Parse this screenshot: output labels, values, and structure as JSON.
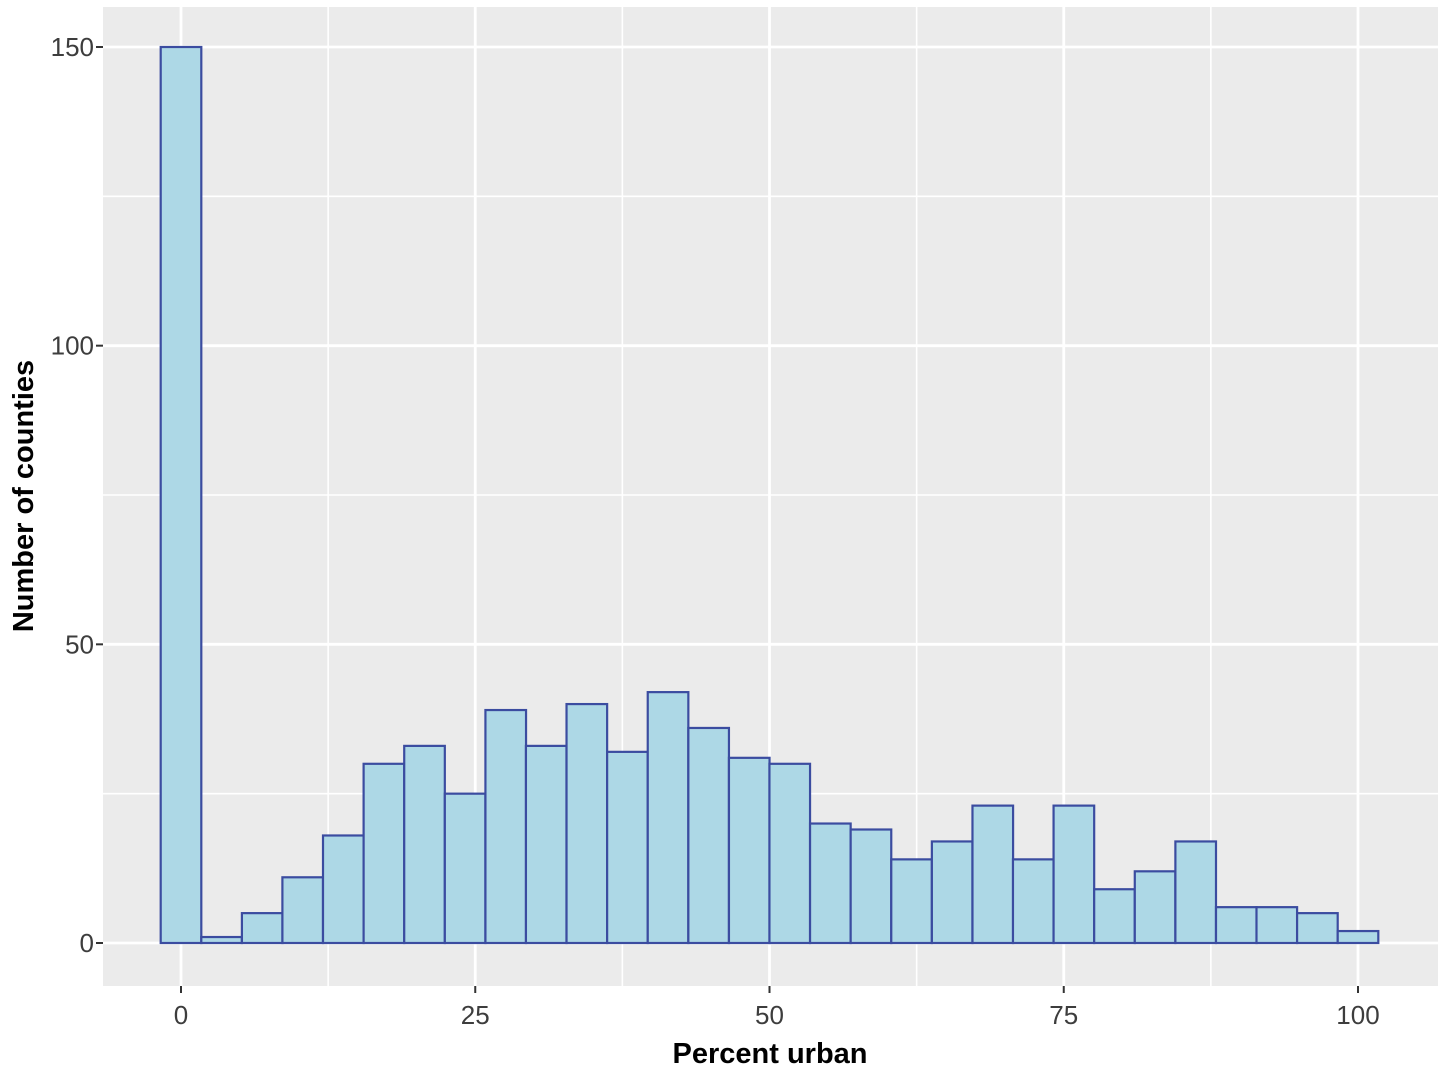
{
  "chart_data": {
    "type": "bar",
    "subtype": "histogram",
    "title": "",
    "xlabel": "Percent urban",
    "ylabel": "Number of counties",
    "x_ticks": [
      0,
      25,
      50,
      75,
      100
    ],
    "y_ticks": [
      0,
      50,
      100,
      150
    ],
    "x_minor_gridlines": [
      12.5,
      37.5,
      62.5,
      87.5
    ],
    "y_minor_gridlines": [
      25,
      75,
      125
    ],
    "xlim": [
      -6.9,
      106.9
    ],
    "ylim": [
      -7.2,
      157.2
    ],
    "grid": "major+minor",
    "legend_position": "none",
    "bin_width": 3.45,
    "bin_centers": [
      0,
      3.45,
      6.9,
      10.34,
      13.79,
      17.24,
      20.69,
      24.14,
      27.59,
      31.03,
      34.48,
      37.93,
      41.38,
      44.83,
      48.28,
      51.72,
      55.17,
      58.62,
      62.07,
      65.52,
      68.97,
      72.41,
      75.86,
      79.31,
      82.76,
      86.21,
      89.66,
      93.1,
      96.55,
      100
    ],
    "values": [
      150,
      1,
      5,
      11,
      18,
      30,
      33,
      25,
      39,
      33,
      40,
      32,
      42,
      36,
      31,
      30,
      20,
      19,
      14,
      17,
      23,
      14,
      23,
      9,
      12,
      17,
      6,
      6,
      5,
      2
    ],
    "colors": {
      "bar_fill": "#ADD8E6",
      "bar_stroke": "#3B4CA0",
      "panel_background": "#EBEBEB",
      "gridline": "#FFFFFF",
      "tick_mark": "#333333",
      "tick_label": "#3d3d3d",
      "axis_title": "#000000",
      "figure_background": "#FFFFFF"
    }
  }
}
